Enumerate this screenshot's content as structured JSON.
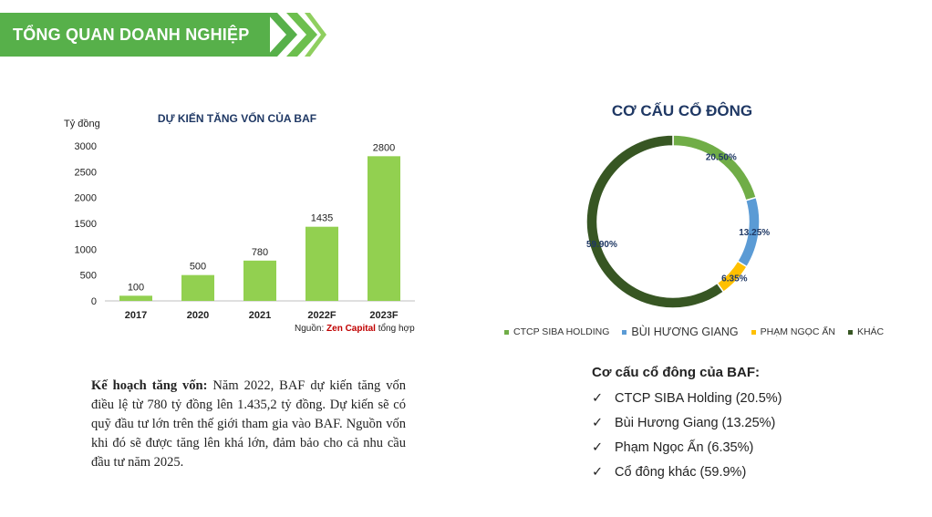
{
  "header": {
    "title": "TỔNG QUAN DOANH NGHIỆP"
  },
  "colors": {
    "accent_green": "#57b04a",
    "bar_green": "#92d050"
  },
  "chart_data": [
    {
      "type": "bar",
      "title": "DỰ KIẾN TĂNG VỐN CỦA BAF",
      "ylabel": "Tỷ đồng",
      "categories": [
        "2017",
        "2020",
        "2021",
        "2022F",
        "2023F"
      ],
      "values": [
        100,
        500,
        780,
        1435,
        2800
      ],
      "data_labels": [
        "100",
        "500",
        "780",
        "1435",
        "2800"
      ],
      "yticks": [
        "0",
        "500",
        "1000",
        "1500",
        "2000",
        "2500",
        "3000"
      ],
      "ylim": [
        0,
        3000
      ],
      "grid": false,
      "color": "#92d050"
    },
    {
      "type": "pie",
      "style": "donut",
      "title": "CƠ CẤU CỔ ĐÔNG",
      "labels": [
        "CTCP SIBA HOLDING",
        "BÙI HƯƠNG GIANG",
        "PHẠM NGỌC ẤN",
        "KHÁC"
      ],
      "values": [
        20.5,
        13.25,
        6.35,
        59.9
      ],
      "data_labels": [
        "20.50%",
        "13.25%",
        "6.35%",
        "59.90%"
      ],
      "colors": [
        "#70ad47",
        "#5b9bd5",
        "#ffc000",
        "#375623"
      ],
      "legend_position": "bottom"
    }
  ],
  "source": {
    "prefix": "Nguồn:",
    "brand": "Zen Capital",
    "suffix": "tổng hợp"
  },
  "description": {
    "label": "Kế hoạch tăng vốn:",
    "text": "Năm 2022, BAF dự kiến tăng vốn điều lệ từ 780 tỷ đồng lên 1.435,2 tỷ đồng. Dự kiến sẽ có quỹ đầu tư lớn trên thế giới tham gia vào BAF. Nguồn vốn khi đó sẽ được tăng lên khá lớn, đảm bảo cho cả nhu cầu đầu tư năm 2025."
  },
  "structure": {
    "title": "Cơ cấu cổ đông của BAF:",
    "check_glyph": "✓",
    "items": [
      "CTCP SIBA Holding (20.5%)",
      "Bùi Hương Giang (13.25%)",
      "Phạm Ngọc Ấn (6.35%)",
      "Cổ đông khác (59.9%)"
    ]
  }
}
